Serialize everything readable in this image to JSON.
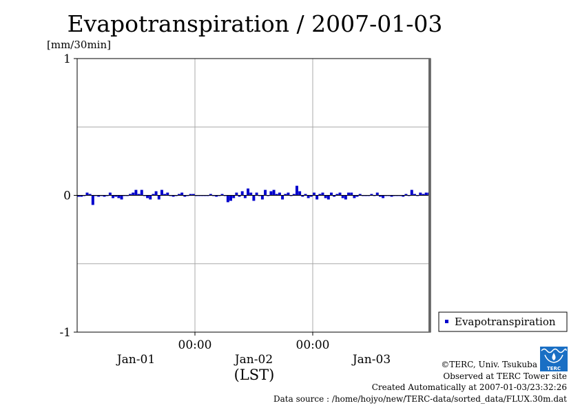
{
  "chart_data": {
    "type": "bar",
    "title": "Evapotranspiration / 2007-01-03",
    "yunit": "[mm/30min]",
    "ylim": [
      -1,
      1
    ],
    "yticks": [
      {
        "value": 1,
        "label": "1"
      },
      {
        "value": 0,
        "label": "0"
      },
      {
        "value": -1,
        "label": "-1"
      }
    ],
    "xtick_times": [
      {
        "value": 1,
        "label": "00:00"
      },
      {
        "value": 2,
        "label": "00:00"
      }
    ],
    "xtick_dates": [
      {
        "value": 0.5,
        "label": "Jan-01"
      },
      {
        "value": 1.5,
        "label": "Jan-02"
      },
      {
        "value": 2.5,
        "label": "Jan-03"
      }
    ],
    "xlabel": "(LST)",
    "xlim_days": [
      0,
      3
    ],
    "grid": true,
    "legend_placement": "right",
    "color": "#0000cc",
    "series": [
      {
        "name": "Evapotranspiration",
        "values": [
          -0.01,
          -0.01,
          0,
          0.02,
          0.01,
          -0.07,
          0,
          -0.01,
          0,
          -0.01,
          0,
          0.02,
          -0.02,
          -0.01,
          -0.02,
          -0.03,
          0,
          0,
          0.01,
          0.02,
          0.04,
          0.01,
          0.04,
          0,
          -0.02,
          -0.03,
          0.01,
          0.03,
          -0.03,
          0.04,
          0.01,
          0.02,
          0,
          -0.01,
          0,
          0.01,
          0.02,
          -0.01,
          0,
          0.01,
          0.01,
          0,
          0,
          0,
          0,
          0,
          0.01,
          0,
          -0.01,
          0,
          0.01,
          0,
          -0.05,
          -0.04,
          -0.02,
          0.02,
          -0.01,
          0.03,
          -0.02,
          0.05,
          0.02,
          -0.04,
          0.02,
          0,
          -0.03,
          0.04,
          0,
          0.03,
          0.04,
          0.01,
          0.02,
          -0.03,
          0.01,
          0.02,
          0,
          0.01,
          0.07,
          0.03,
          -0.01,
          0.01,
          -0.02,
          -0.01,
          0.02,
          -0.03,
          0.01,
          0.02,
          -0.02,
          -0.03,
          0.02,
          -0.01,
          0.01,
          0.02,
          -0.02,
          -0.03,
          0.02,
          0.02,
          -0.02,
          -0.01,
          0.01,
          0,
          0,
          0,
          0.01,
          0,
          0.02,
          -0.01,
          -0.02,
          0,
          0,
          -0.01,
          0,
          0,
          0,
          -0.01,
          0.01,
          0,
          0.04,
          0.01,
          0,
          0.02,
          0.01,
          0.02,
          0.02
        ]
      }
    ]
  },
  "credits": {
    "copyright": "©TERC, Univ. Tsukuba",
    "observed": "Observed at TERC Tower site",
    "created": "Created Automatically at 2007-01-03/23:32:26",
    "source": "Data source : /home/hojyo/new/TERC-data/sorted_data/FLUX.30m.dat"
  },
  "logo": {
    "text": "TERC",
    "color": "#1a6fc4",
    "icon": "terc-logo-icon"
  }
}
